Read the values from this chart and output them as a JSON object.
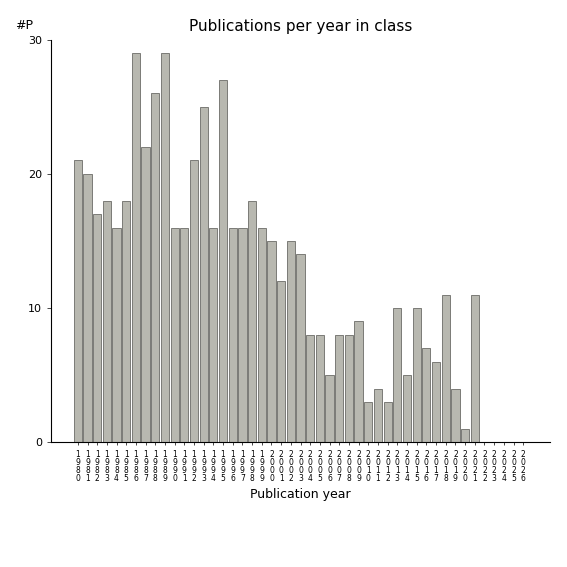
{
  "title": "Publications per year in class",
  "xlabel": "Publication year",
  "ylabel": "#P",
  "bar_color": "#b8b8b0",
  "bar_edgecolor": "#555550",
  "background_color": "#ffffff",
  "ylim": [
    0,
    30
  ],
  "yticks": [
    0,
    10,
    20,
    30
  ],
  "years": [
    1980,
    1981,
    1982,
    1983,
    1984,
    1985,
    1986,
    1987,
    1988,
    1989,
    1990,
    1991,
    1992,
    1993,
    1994,
    1995,
    1996,
    1997,
    1998,
    1999,
    2000,
    2001,
    2002,
    2003,
    2004,
    2005,
    2006,
    2007,
    2008,
    2009,
    2010,
    2011,
    2012,
    2013,
    2014,
    2015,
    2016,
    2017,
    2018,
    2019,
    2020,
    2021,
    2022,
    2023,
    2024,
    2025,
    2026
  ],
  "values": [
    21,
    20,
    17,
    18,
    16,
    18,
    29,
    22,
    26,
    29,
    16,
    16,
    21,
    25,
    16,
    27,
    16,
    16,
    18,
    16,
    15,
    12,
    15,
    14,
    8,
    8,
    5,
    8,
    8,
    9,
    3,
    4,
    3,
    10,
    5,
    10,
    7,
    6,
    11,
    4,
    1,
    11,
    0,
    0,
    0,
    0,
    0
  ]
}
